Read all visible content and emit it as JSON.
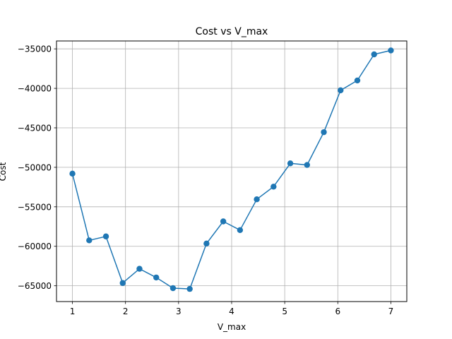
{
  "chart_data": {
    "type": "line",
    "title": "Cost vs V_max",
    "xlabel": "V_max",
    "ylabel": "Cost",
    "xlim": [
      0.7,
      7.3
    ],
    "ylim": [
      -67000,
      -34000
    ],
    "xticks": [
      1,
      2,
      3,
      4,
      5,
      6,
      7
    ],
    "yticks": [
      -65000,
      -60000,
      -55000,
      -50000,
      -45000,
      -40000,
      -35000
    ],
    "grid": true,
    "series": [
      {
        "color": "#1f77b4",
        "marker": "circle",
        "x": [
          1.0,
          1.3158,
          1.6316,
          1.9474,
          2.2632,
          2.5789,
          2.8947,
          3.2105,
          3.5263,
          3.8421,
          4.1579,
          4.4737,
          4.7895,
          5.1053,
          5.4211,
          5.7368,
          6.0526,
          6.3684,
          6.6842,
          7.0
        ],
        "y": [
          -50800,
          -59250,
          -58750,
          -64650,
          -62850,
          -63950,
          -65300,
          -65400,
          -59650,
          -56850,
          -57950,
          -54050,
          -52450,
          -49500,
          -49700,
          -45550,
          -40250,
          -39000,
          -35700,
          -35200
        ]
      }
    ]
  }
}
